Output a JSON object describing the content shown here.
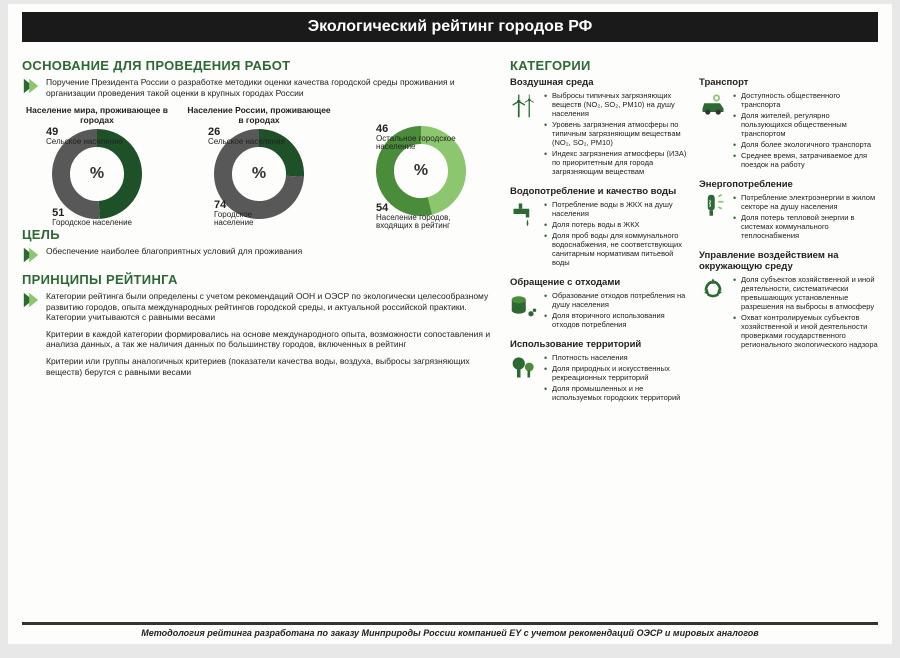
{
  "title": "Экологический рейтинг городов РФ",
  "colors": {
    "dark_green": "#1e5128",
    "mid_green": "#4a8c3a",
    "light_green": "#8cc770",
    "accent": "#2d6a33",
    "title_bg": "#1a1a1a",
    "text": "#222222",
    "page_bg": "#fdfdfb"
  },
  "left": {
    "basis": {
      "heading": "ОСНОВАНИЕ ДЛЯ ПРОВЕДЕНИЯ РАБОТ",
      "text": "Поручение Президента России о разработке методики оценки качества городской среды проживания и организации проведения такой оценки в крупных городах России"
    },
    "donuts": [
      {
        "title": "Население мира, проживающее в городах",
        "center": "%",
        "segments": [
          {
            "value": 49,
            "label": "Сельское население",
            "color": "#1e5128"
          },
          {
            "value": 51,
            "label": "Городское население",
            "color": "#585858"
          }
        ]
      },
      {
        "title": "Население России, проживающее в городах",
        "center": "%",
        "segments": [
          {
            "value": 26,
            "label": "Сельское население",
            "color": "#1e5128"
          },
          {
            "value": 74,
            "label": "Городское население",
            "color": "#585858"
          }
        ]
      },
      {
        "title": "",
        "center": "%",
        "segments": [
          {
            "value": 46,
            "label": "Остальное городское население",
            "color": "#8cc770"
          },
          {
            "value": 54,
            "label": "Население городов, входящих в рейтинг",
            "color": "#4a8c3a"
          }
        ]
      }
    ],
    "goal": {
      "heading": "ЦЕЛЬ",
      "text": "Обеспечение наиболее благоприятных условий для проживания"
    },
    "principles": {
      "heading": "ПРИНЦИПЫ РЕЙТИНГА",
      "items": [
        "Категории рейтинга были определены с учетом рекомендаций ООН и ОЭСР по экологически целесообразному развитию городов, опыта международных рейтингов городской среды, и актуальной российской практики. Категории учитываются с равными весами",
        "Критерии в каждой категории формировались на основе международного опыта, возможности сопоставления и анализа данных, а так же наличия данных по большинству городов, включенных в рейтинг",
        "Критерии или группы аналогичных критериев (показатели качества воды, воздуха, выбросы загрязняющих веществ) берутся с равными весами"
      ]
    }
  },
  "right": {
    "heading": "КАТЕГОРИИ",
    "col1": [
      {
        "title": "Воздушная среда",
        "icon": "wind-turbine-icon",
        "items": [
          "Выбросы типичных загрязняющих веществ (NO₂, SO₂, PM10) на душу населения",
          "Уровень загрязнения атмосферы по типичным загрязняющим веществам (NO₂, SO₂, PM10)",
          "Индекс загрязнения атмосферы (ИЗА) по приоритетным для города загрязняющим веществам"
        ]
      },
      {
        "title": "Водопотребление и качество воды",
        "icon": "water-tap-icon",
        "items": [
          "Потребление воды в ЖКХ на душу населения",
          "Доля потерь воды в ЖКХ",
          "Доля проб воды для коммунального водоснабжения, не соответствующих санитарным нормативам питьевой воды"
        ]
      },
      {
        "title": "Обращение с отходами",
        "icon": "waste-icon",
        "items": [
          "Образование отходов потребления на душу населения",
          "Доля вторичного использования отходов потребления"
        ]
      },
      {
        "title": "Использование территорий",
        "icon": "tree-icon",
        "items": [
          "Плотность населения",
          "Доля природных и искусственных рекреационных территорий",
          "Доля промышленных и не используемых городских территорий"
        ]
      }
    ],
    "col2": [
      {
        "title": "Транспорт",
        "icon": "car-icon",
        "items": [
          "Доступность общественного транспорта",
          "Доля жителей, регулярно пользующихся общественным транспортом",
          "Доля более экологичного транспорта",
          "Среднее время, затрачиваемое для поездок на работу"
        ]
      },
      {
        "title": "Энергопотребление",
        "icon": "bulb-icon",
        "items": [
          "Потребление электроэнергии в жилом секторе на душу населения",
          "Доля потерь тепловой энергии в системах коммунального теплоснабжения"
        ]
      },
      {
        "title": "Управление воздействием на окружающую среду",
        "icon": "recycle-icon",
        "items": [
          "Доля субъектов хозяйственной и иной деятельности, систематически превышающих установленные разрешения на выбросы в атмосферу",
          "Охват контролируемых субъектов хозяйственной и иной деятельности проверками государственного регионального экологического надзора"
        ]
      }
    ]
  },
  "footer": "Методология рейтинга разработана по заказу Минприроды России компанией EY с учетом рекомендаций ОЭСР и мировых аналогов"
}
